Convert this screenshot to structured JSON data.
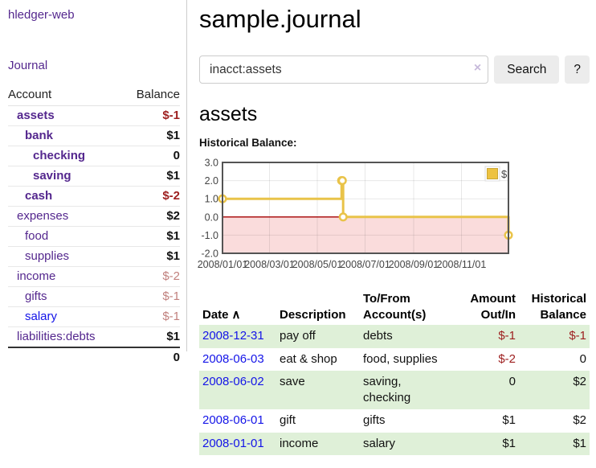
{
  "app": {
    "brand": "hledger-web"
  },
  "sidebar": {
    "journal_link": "Journal",
    "accounts_table": {
      "account_header": "Account",
      "balance_header": "Balance",
      "rows": [
        {
          "name": "assets",
          "depth": 1,
          "bold": true,
          "link_color": "purple",
          "balance": "$-1",
          "balance_style": "neg-strong"
        },
        {
          "name": "bank",
          "depth": 2,
          "bold": true,
          "link_color": "purple",
          "balance": "$1",
          "balance_style": "pos"
        },
        {
          "name": "checking",
          "depth": 3,
          "bold": true,
          "link_color": "purple",
          "balance": "0",
          "balance_style": "pos"
        },
        {
          "name": "saving",
          "depth": 3,
          "bold": true,
          "link_color": "purple",
          "balance": "$1",
          "balance_style": "pos"
        },
        {
          "name": "cash",
          "depth": 2,
          "bold": true,
          "link_color": "purple",
          "balance": "$-2",
          "balance_style": "neg-strong"
        },
        {
          "name": "expenses",
          "depth": 1,
          "bold": false,
          "link_color": "purple",
          "balance": "$2",
          "balance_style": "pos"
        },
        {
          "name": "food",
          "depth": 2,
          "bold": false,
          "link_color": "purple",
          "balance": "$1",
          "balance_style": "pos"
        },
        {
          "name": "supplies",
          "depth": 2,
          "bold": false,
          "link_color": "purple",
          "balance": "$1",
          "balance_style": "pos"
        },
        {
          "name": "income",
          "depth": 1,
          "bold": false,
          "link_color": "purple",
          "balance": "$-2",
          "balance_style": "neg-soft"
        },
        {
          "name": "gifts",
          "depth": 2,
          "bold": false,
          "link_color": "purple",
          "balance": "$-1",
          "balance_style": "neg-soft"
        },
        {
          "name": "salary",
          "depth": 2,
          "bold": false,
          "link_color": "blue",
          "balance": "$-1",
          "balance_style": "neg-soft"
        },
        {
          "name": "liabilities:debts",
          "depth": 1,
          "bold": false,
          "link_color": "purple",
          "balance": "$1",
          "balance_style": "pos"
        }
      ],
      "total": "0"
    }
  },
  "main": {
    "title": "sample.journal",
    "search": {
      "value": "inacct:assets",
      "clear_icon": "×",
      "search_button": "Search",
      "help_button": "?"
    },
    "account_heading": "assets",
    "chart_label": "Historical Balance:",
    "register": {
      "headers": {
        "date": "Date",
        "sort_indicator": "∧",
        "description": "Description",
        "accounts": "To/From\nAccount(s)",
        "amount": "Amount\nOut/In",
        "balance": "Historical\nBalance"
      },
      "rows": [
        {
          "date": "2008-12-31",
          "description": "pay off",
          "accounts": "debts",
          "amount": "$-1",
          "amount_negative": true,
          "balance": "$-1",
          "balance_negative": true
        },
        {
          "date": "2008-06-03",
          "description": "eat & shop",
          "accounts": "food, supplies",
          "amount": "$-2",
          "amount_negative": true,
          "balance": "0",
          "balance_negative": false
        },
        {
          "date": "2008-06-02",
          "description": "save",
          "accounts": "saving,\nchecking",
          "amount": "0",
          "amount_negative": false,
          "balance": "$2",
          "balance_negative": false
        },
        {
          "date": "2008-06-01",
          "description": "gift",
          "accounts": "gifts",
          "amount": "$1",
          "amount_negative": false,
          "balance": "$2",
          "balance_negative": false
        },
        {
          "date": "2008-01-01",
          "description": "income",
          "accounts": "salary",
          "amount": "$1",
          "amount_negative": false,
          "balance": "$1",
          "balance_negative": false
        }
      ]
    }
  },
  "chart_data": {
    "type": "line",
    "step": true,
    "title": "Historical Balance",
    "series": [
      {
        "name": "$",
        "points": [
          [
            "2008-01-01",
            1
          ],
          [
            "2008-06-01",
            2
          ],
          [
            "2008-06-02",
            2
          ],
          [
            "2008-06-03",
            0
          ],
          [
            "2008-12-31",
            -1
          ]
        ]
      }
    ],
    "xlim": [
      "2008-01-01",
      "2008-12-31"
    ],
    "ylim": [
      -2,
      3
    ],
    "yticks": [
      3,
      2,
      1,
      0,
      -1,
      -2
    ],
    "ytick_labels": [
      "3.0",
      "2.0",
      "1.0",
      "0.0",
      "-1.0",
      "-2.0"
    ],
    "xticks": [
      {
        "date": "2008-01-01",
        "label": "2008/01/01"
      },
      {
        "date": "2008-03-01",
        "label": "2008/03/01"
      },
      {
        "date": "2008-05-01",
        "label": "2008/05/01"
      },
      {
        "date": "2008-07-01",
        "label": "2008/07/01"
      },
      {
        "date": "2008-09-01",
        "label": "2008/09/01"
      },
      {
        "date": "2008-11-01",
        "label": "2008/11/01"
      }
    ],
    "legend": {
      "label": "$",
      "position": "top-right"
    },
    "grid": true,
    "negative_region_shaded": true
  },
  "colors": {
    "link_purple": "#54278e",
    "link_blue": "#1414e8",
    "negative_strong": "#9d1e1e",
    "negative_soft": "#c1807d",
    "row_green": "#dff0d8",
    "series_gold": "#e9c349",
    "legend_gold": "#edc240",
    "negative_region_pink": "#fadcdc",
    "zero_line_red": "#a40000",
    "chart_border": "#545454"
  }
}
